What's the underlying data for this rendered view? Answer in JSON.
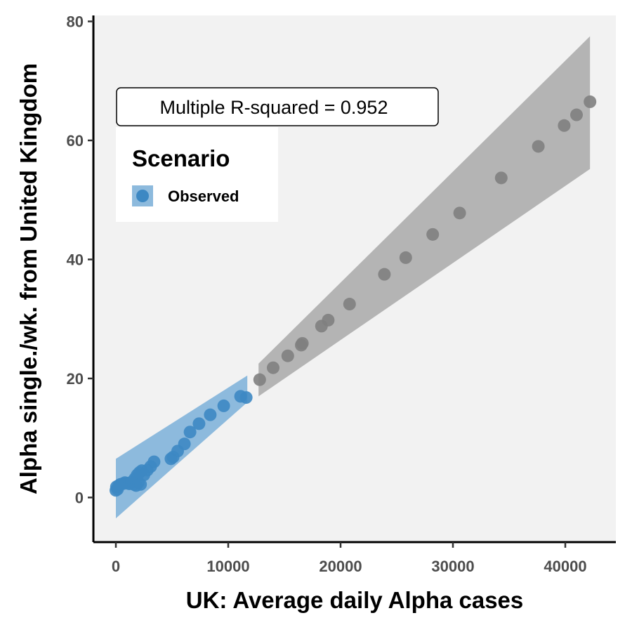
{
  "chart_data": {
    "type": "scatter",
    "xlabel": "UK: Average daily Alpha cases",
    "ylabel": "Alpha single./wk. from United Kingdom",
    "xlim": [
      -2000,
      44500
    ],
    "ylim": [
      -7.5,
      81
    ],
    "x_ticks": [
      0,
      10000,
      20000,
      30000,
      40000
    ],
    "x_tick_labels": [
      "0",
      "10000",
      "20000",
      "30000",
      "40000"
    ],
    "y_ticks": [
      0,
      20,
      40,
      60,
      80
    ],
    "y_tick_labels": [
      "0",
      "20",
      "40",
      "60",
      "80"
    ],
    "annotation": "Multiple R-squared = 0.952",
    "legend": {
      "title": "Scenario",
      "entries": [
        "Observed"
      ],
      "position": "top-left"
    },
    "grid": false,
    "colors": {
      "observed": "#3d88c3",
      "observed_band": "#8dbadd",
      "projected": "#7f7f7f",
      "projected_band": "#b4b4b4",
      "panel": "#f2f2f2"
    },
    "series": [
      {
        "name": "Observed",
        "band": {
          "x": [
            0,
            11700
          ],
          "y_low": [
            -3.5,
            16.0
          ],
          "y_high": [
            6.5,
            20.5
          ]
        },
        "points": [
          [
            0,
            1.2
          ],
          [
            50,
            1.8
          ],
          [
            150,
            1.4
          ],
          [
            250,
            2.0
          ],
          [
            400,
            2.2
          ],
          [
            600,
            2.3
          ],
          [
            800,
            2.5
          ],
          [
            1000,
            2.4
          ],
          [
            1200,
            2.3
          ],
          [
            1400,
            2.6
          ],
          [
            1600,
            2.2
          ],
          [
            1700,
            3.2
          ],
          [
            1800,
            2.0
          ],
          [
            1900,
            3.8
          ],
          [
            2000,
            2.5
          ],
          [
            2100,
            4.2
          ],
          [
            2200,
            2.2
          ],
          [
            2300,
            4.5
          ],
          [
            2500,
            3.8
          ],
          [
            2800,
            4.6
          ],
          [
            3100,
            5.2
          ],
          [
            3400,
            6.0
          ],
          [
            4900,
            6.5
          ],
          [
            5100,
            6.8
          ],
          [
            5500,
            7.8
          ],
          [
            6100,
            9.0
          ],
          [
            6600,
            11.0
          ],
          [
            7400,
            12.4
          ],
          [
            8400,
            13.9
          ],
          [
            9600,
            15.4
          ],
          [
            11100,
            17.0
          ],
          [
            11600,
            16.8
          ]
        ]
      },
      {
        "band": {
          "x": [
            12700,
            42200
          ],
          "y_low": [
            17.0,
            55.2
          ],
          "y_high": [
            22.5,
            77.5
          ]
        },
        "points": [
          [
            12800,
            19.8
          ],
          [
            14000,
            21.8
          ],
          [
            15300,
            23.8
          ],
          [
            16500,
            25.6
          ],
          [
            16600,
            25.9
          ],
          [
            18300,
            28.8
          ],
          [
            18900,
            29.8
          ],
          [
            20800,
            32.5
          ],
          [
            23900,
            37.5
          ],
          [
            25800,
            40.3
          ],
          [
            28200,
            44.2
          ],
          [
            30600,
            47.8
          ],
          [
            34300,
            53.7
          ],
          [
            37600,
            59.0
          ],
          [
            39900,
            62.5
          ],
          [
            41000,
            64.3
          ],
          [
            42200,
            66.5
          ]
        ]
      }
    ]
  }
}
